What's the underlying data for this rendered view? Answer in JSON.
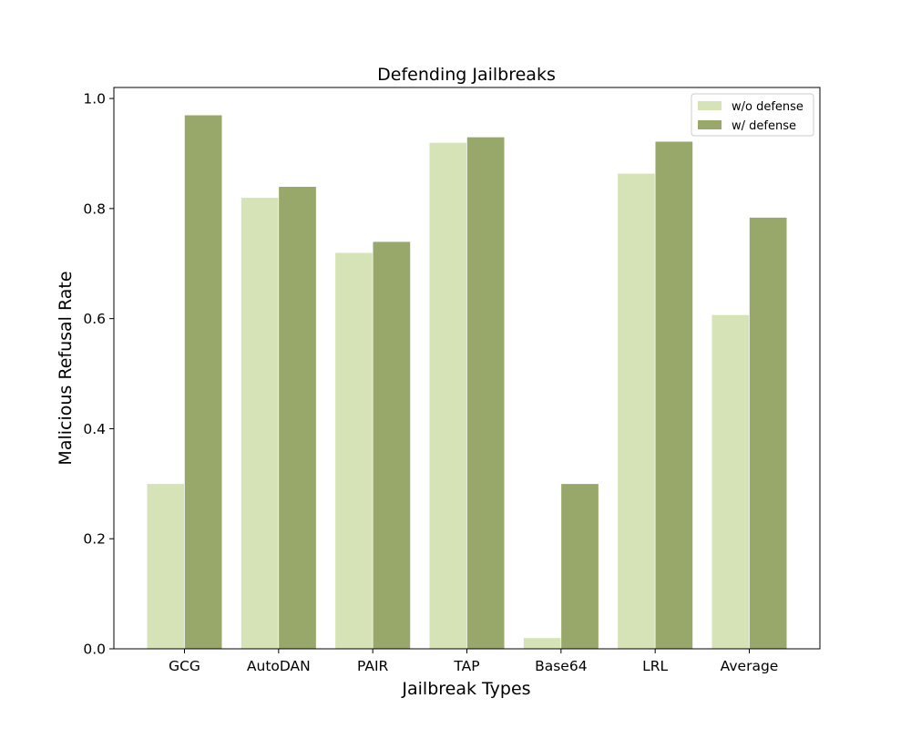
{
  "chart_data": {
    "type": "bar",
    "title": "Defending Jailbreaks",
    "xlabel": "Jailbreak Types",
    "ylabel": "Malicious Refusal Rate",
    "categories": [
      "GCG",
      "AutoDAN",
      "PAIR",
      "TAP",
      "Base64",
      "LRL",
      "Average"
    ],
    "series": [
      {
        "name": "w/o defense",
        "color": "#d6e3b7",
        "values": [
          0.3,
          0.82,
          0.72,
          0.92,
          0.02,
          0.864,
          0.607
        ]
      },
      {
        "name": "w/ defense",
        "color": "#98a86a",
        "values": [
          0.97,
          0.84,
          0.74,
          0.93,
          0.3,
          0.922,
          0.784
        ]
      }
    ],
    "ylim": [
      0,
      1.02
    ],
    "yticks": [
      0.0,
      0.2,
      0.4,
      0.6,
      0.8,
      1.0
    ],
    "ytick_labels": [
      "0.0",
      "0.2",
      "0.4",
      "0.6",
      "0.8",
      "1.0"
    ],
    "grid": false,
    "legend_position": "top-right"
  }
}
